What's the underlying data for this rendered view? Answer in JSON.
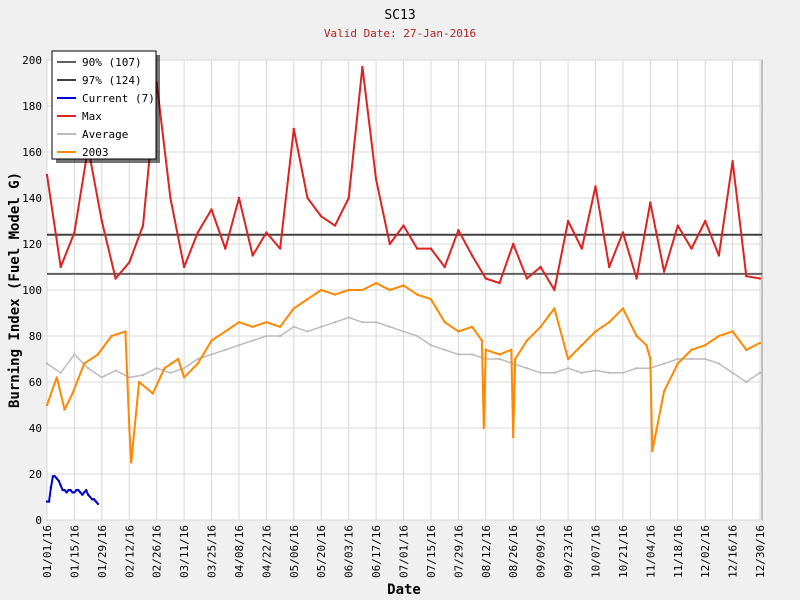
{
  "chart_data": {
    "type": "line",
    "title": "SC13",
    "subtitle": "Valid Date: 27-Jan-2016",
    "xlabel": "Date",
    "ylabel": "Burning Index (Fuel Model G)",
    "ylim": [
      0,
      200
    ],
    "yticks": [
      0,
      20,
      40,
      60,
      80,
      100,
      120,
      140,
      160,
      180,
      200
    ],
    "xlim": [
      "2016-01-01",
      "2016-12-31"
    ],
    "xticks": [
      "01/01/16",
      "01/15/16",
      "01/29/16",
      "02/12/16",
      "02/26/16",
      "03/11/16",
      "03/25/16",
      "04/08/16",
      "04/22/16",
      "05/06/16",
      "05/20/16",
      "06/03/16",
      "06/17/16",
      "07/01/16",
      "07/15/16",
      "07/29/16",
      "08/12/16",
      "08/26/16",
      "09/09/16",
      "09/23/16",
      "10/07/16",
      "10/21/16",
      "11/04/16",
      "11/18/16",
      "12/02/16",
      "12/16/16",
      "12/30/16"
    ],
    "grid": true,
    "legend_position": "top-left",
    "colors": {
      "p90": "#606060",
      "p97": "#404040",
      "current": "#0000cc",
      "max": "#dd2222",
      "average": "#bbbbbb",
      "y2003": "#ff8800"
    },
    "thresholds": [
      {
        "name": "90% (107)",
        "value": 107
      },
      {
        "name": "97% (124)",
        "value": 124
      }
    ],
    "series": [
      {
        "name": "Current (7)",
        "x": [
          "2016-01-01",
          "2016-01-02",
          "2016-01-03",
          "2016-01-04",
          "2016-01-05",
          "2016-01-06",
          "2016-01-07",
          "2016-01-08",
          "2016-01-09",
          "2016-01-10",
          "2016-01-11",
          "2016-01-12",
          "2016-01-13",
          "2016-01-14",
          "2016-01-15",
          "2016-01-16",
          "2016-01-17",
          "2016-01-18",
          "2016-01-19",
          "2016-01-20",
          "2016-01-21",
          "2016-01-22",
          "2016-01-23",
          "2016-01-24",
          "2016-01-25",
          "2016-01-26",
          "2016-01-27"
        ],
        "values": [
          8,
          8,
          14,
          19,
          19,
          18,
          17,
          15,
          13,
          13,
          12,
          13,
          13,
          12,
          12,
          13,
          13,
          12,
          11,
          12,
          13,
          11,
          10,
          9,
          9,
          8,
          7
        ]
      },
      {
        "name": "Max",
        "x": [
          "2016-01-01",
          "2016-01-08",
          "2016-01-15",
          "2016-01-22",
          "2016-01-29",
          "2016-02-05",
          "2016-02-12",
          "2016-02-19",
          "2016-02-26",
          "2016-03-04",
          "2016-03-11",
          "2016-03-18",
          "2016-03-25",
          "2016-04-01",
          "2016-04-08",
          "2016-04-15",
          "2016-04-22",
          "2016-04-29",
          "2016-05-06",
          "2016-05-13",
          "2016-05-20",
          "2016-05-27",
          "2016-06-03",
          "2016-06-10",
          "2016-06-17",
          "2016-06-24",
          "2016-07-01",
          "2016-07-08",
          "2016-07-15",
          "2016-07-22",
          "2016-07-29",
          "2016-08-05",
          "2016-08-12",
          "2016-08-19",
          "2016-08-26",
          "2016-09-02",
          "2016-09-09",
          "2016-09-16",
          "2016-09-23",
          "2016-09-30",
          "2016-10-07",
          "2016-10-14",
          "2016-10-21",
          "2016-10-28",
          "2016-11-04",
          "2016-11-11",
          "2016-11-18",
          "2016-11-25",
          "2016-12-02",
          "2016-12-09",
          "2016-12-16",
          "2016-12-23",
          "2016-12-30"
        ],
        "values": [
          150,
          110,
          125,
          162,
          130,
          105,
          112,
          128,
          190,
          140,
          110,
          125,
          135,
          118,
          140,
          115,
          125,
          118,
          170,
          140,
          132,
          128,
          140,
          197,
          148,
          120,
          128,
          118,
          118,
          110,
          126,
          115,
          105,
          103,
          120,
          105,
          110,
          100,
          130,
          118,
          145,
          110,
          125,
          105,
          138,
          108,
          128,
          118,
          130,
          115,
          156,
          106,
          105
        ]
      },
      {
        "name": "Average",
        "x": [
          "2016-01-01",
          "2016-01-08",
          "2016-01-15",
          "2016-01-22",
          "2016-01-29",
          "2016-02-05",
          "2016-02-12",
          "2016-02-19",
          "2016-02-26",
          "2016-03-04",
          "2016-03-11",
          "2016-03-18",
          "2016-03-25",
          "2016-04-01",
          "2016-04-08",
          "2016-04-15",
          "2016-04-22",
          "2016-04-29",
          "2016-05-06",
          "2016-05-13",
          "2016-05-20",
          "2016-05-27",
          "2016-06-03",
          "2016-06-10",
          "2016-06-17",
          "2016-06-24",
          "2016-07-01",
          "2016-07-08",
          "2016-07-15",
          "2016-07-22",
          "2016-07-29",
          "2016-08-05",
          "2016-08-12",
          "2016-08-19",
          "2016-08-26",
          "2016-09-02",
          "2016-09-09",
          "2016-09-16",
          "2016-09-23",
          "2016-09-30",
          "2016-10-07",
          "2016-10-14",
          "2016-10-21",
          "2016-10-28",
          "2016-11-04",
          "2016-11-11",
          "2016-11-18",
          "2016-11-25",
          "2016-12-02",
          "2016-12-09",
          "2016-12-16",
          "2016-12-23",
          "2016-12-30"
        ],
        "values": [
          68,
          64,
          72,
          66,
          62,
          65,
          62,
          63,
          66,
          64,
          66,
          70,
          72,
          74,
          76,
          78,
          80,
          80,
          84,
          82,
          84,
          86,
          88,
          86,
          86,
          84,
          82,
          80,
          76,
          74,
          72,
          72,
          70,
          70,
          68,
          66,
          64,
          64,
          66,
          64,
          65,
          64,
          64,
          66,
          66,
          68,
          70,
          70,
          70,
          68,
          64,
          60,
          64
        ]
      },
      {
        "name": "2003",
        "x": [
          "2016-01-01",
          "2016-01-06",
          "2016-01-10",
          "2016-01-14",
          "2016-01-20",
          "2016-01-27",
          "2016-02-03",
          "2016-02-10",
          "2016-02-12",
          "2016-02-13",
          "2016-02-17",
          "2016-02-24",
          "2016-03-01",
          "2016-03-08",
          "2016-03-11",
          "2016-03-18",
          "2016-03-25",
          "2016-04-01",
          "2016-04-08",
          "2016-04-15",
          "2016-04-22",
          "2016-04-29",
          "2016-05-06",
          "2016-05-13",
          "2016-05-20",
          "2016-05-27",
          "2016-06-03",
          "2016-06-10",
          "2016-06-17",
          "2016-06-24",
          "2016-07-01",
          "2016-07-08",
          "2016-07-15",
          "2016-07-22",
          "2016-07-29",
          "2016-08-05",
          "2016-08-10",
          "2016-08-11",
          "2016-08-12",
          "2016-08-19",
          "2016-08-25",
          "2016-08-26",
          "2016-08-27",
          "2016-09-02",
          "2016-09-09",
          "2016-09-16",
          "2016-09-23",
          "2016-09-30",
          "2016-10-07",
          "2016-10-14",
          "2016-10-21",
          "2016-10-28",
          "2016-11-02",
          "2016-11-04",
          "2016-11-05",
          "2016-11-11",
          "2016-11-18",
          "2016-11-25",
          "2016-12-02",
          "2016-12-09",
          "2016-12-16",
          "2016-12-23",
          "2016-12-30"
        ],
        "values": [
          50,
          62,
          48,
          55,
          68,
          72,
          80,
          82,
          40,
          25,
          60,
          55,
          66,
          70,
          62,
          68,
          78,
          82,
          86,
          84,
          86,
          84,
          92,
          96,
          100,
          98,
          100,
          100,
          103,
          100,
          102,
          98,
          96,
          86,
          82,
          84,
          78,
          40,
          74,
          72,
          74,
          36,
          70,
          78,
          84,
          92,
          70,
          76,
          82,
          86,
          92,
          80,
          76,
          70,
          30,
          56,
          68,
          74,
          76,
          80,
          82,
          74,
          77
        ]
      }
    ]
  }
}
